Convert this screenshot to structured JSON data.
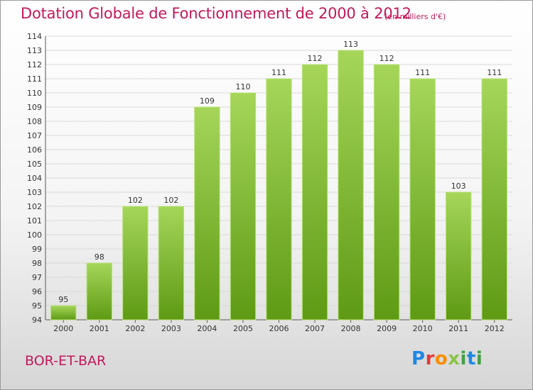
{
  "header": {
    "title": "Dotation Globale de Fonctionnement de 2000 à 2012",
    "unit": "(en milliers d'€)"
  },
  "footer": {
    "commune": "BOR-ET-BAR",
    "logo_parts": [
      "P",
      "r",
      "o",
      "x",
      "i",
      "t",
      "i"
    ]
  },
  "colors": {
    "title": "#c2185b",
    "bar_top": "#a5d65a",
    "bar_bottom": "#5e9a14",
    "grid": "#d9d9d9"
  },
  "chart_data": {
    "type": "bar",
    "title": "Dotation Globale de Fonctionnement de 2000 à 2012",
    "xlabel": "",
    "ylabel": "",
    "categories": [
      "2000",
      "2001",
      "2002",
      "2003",
      "2004",
      "2005",
      "2006",
      "2007",
      "2008",
      "2009",
      "2010",
      "2011",
      "2012"
    ],
    "values": [
      95,
      98,
      102,
      102,
      109,
      110,
      111,
      112,
      113,
      112,
      111,
      103,
      111
    ],
    "data_labels": [
      "95",
      "98",
      "102",
      "102",
      "109",
      "110",
      "111",
      "112",
      "113",
      "112",
      "111",
      "103",
      "111"
    ],
    "ylim": [
      94,
      114
    ],
    "y_ticks": [
      94,
      95,
      96,
      97,
      98,
      99,
      100,
      101,
      102,
      103,
      104,
      105,
      106,
      107,
      108,
      109,
      110,
      111,
      112,
      113,
      114
    ],
    "y_tick_labels": [
      "94",
      "95",
      "96",
      "97",
      "98",
      "99",
      "100",
      "101",
      "102",
      "103",
      "104",
      "105",
      "106",
      "107",
      "108",
      "109",
      "110",
      "111",
      "112",
      "113",
      "114"
    ],
    "grid": true,
    "legend": "none"
  }
}
